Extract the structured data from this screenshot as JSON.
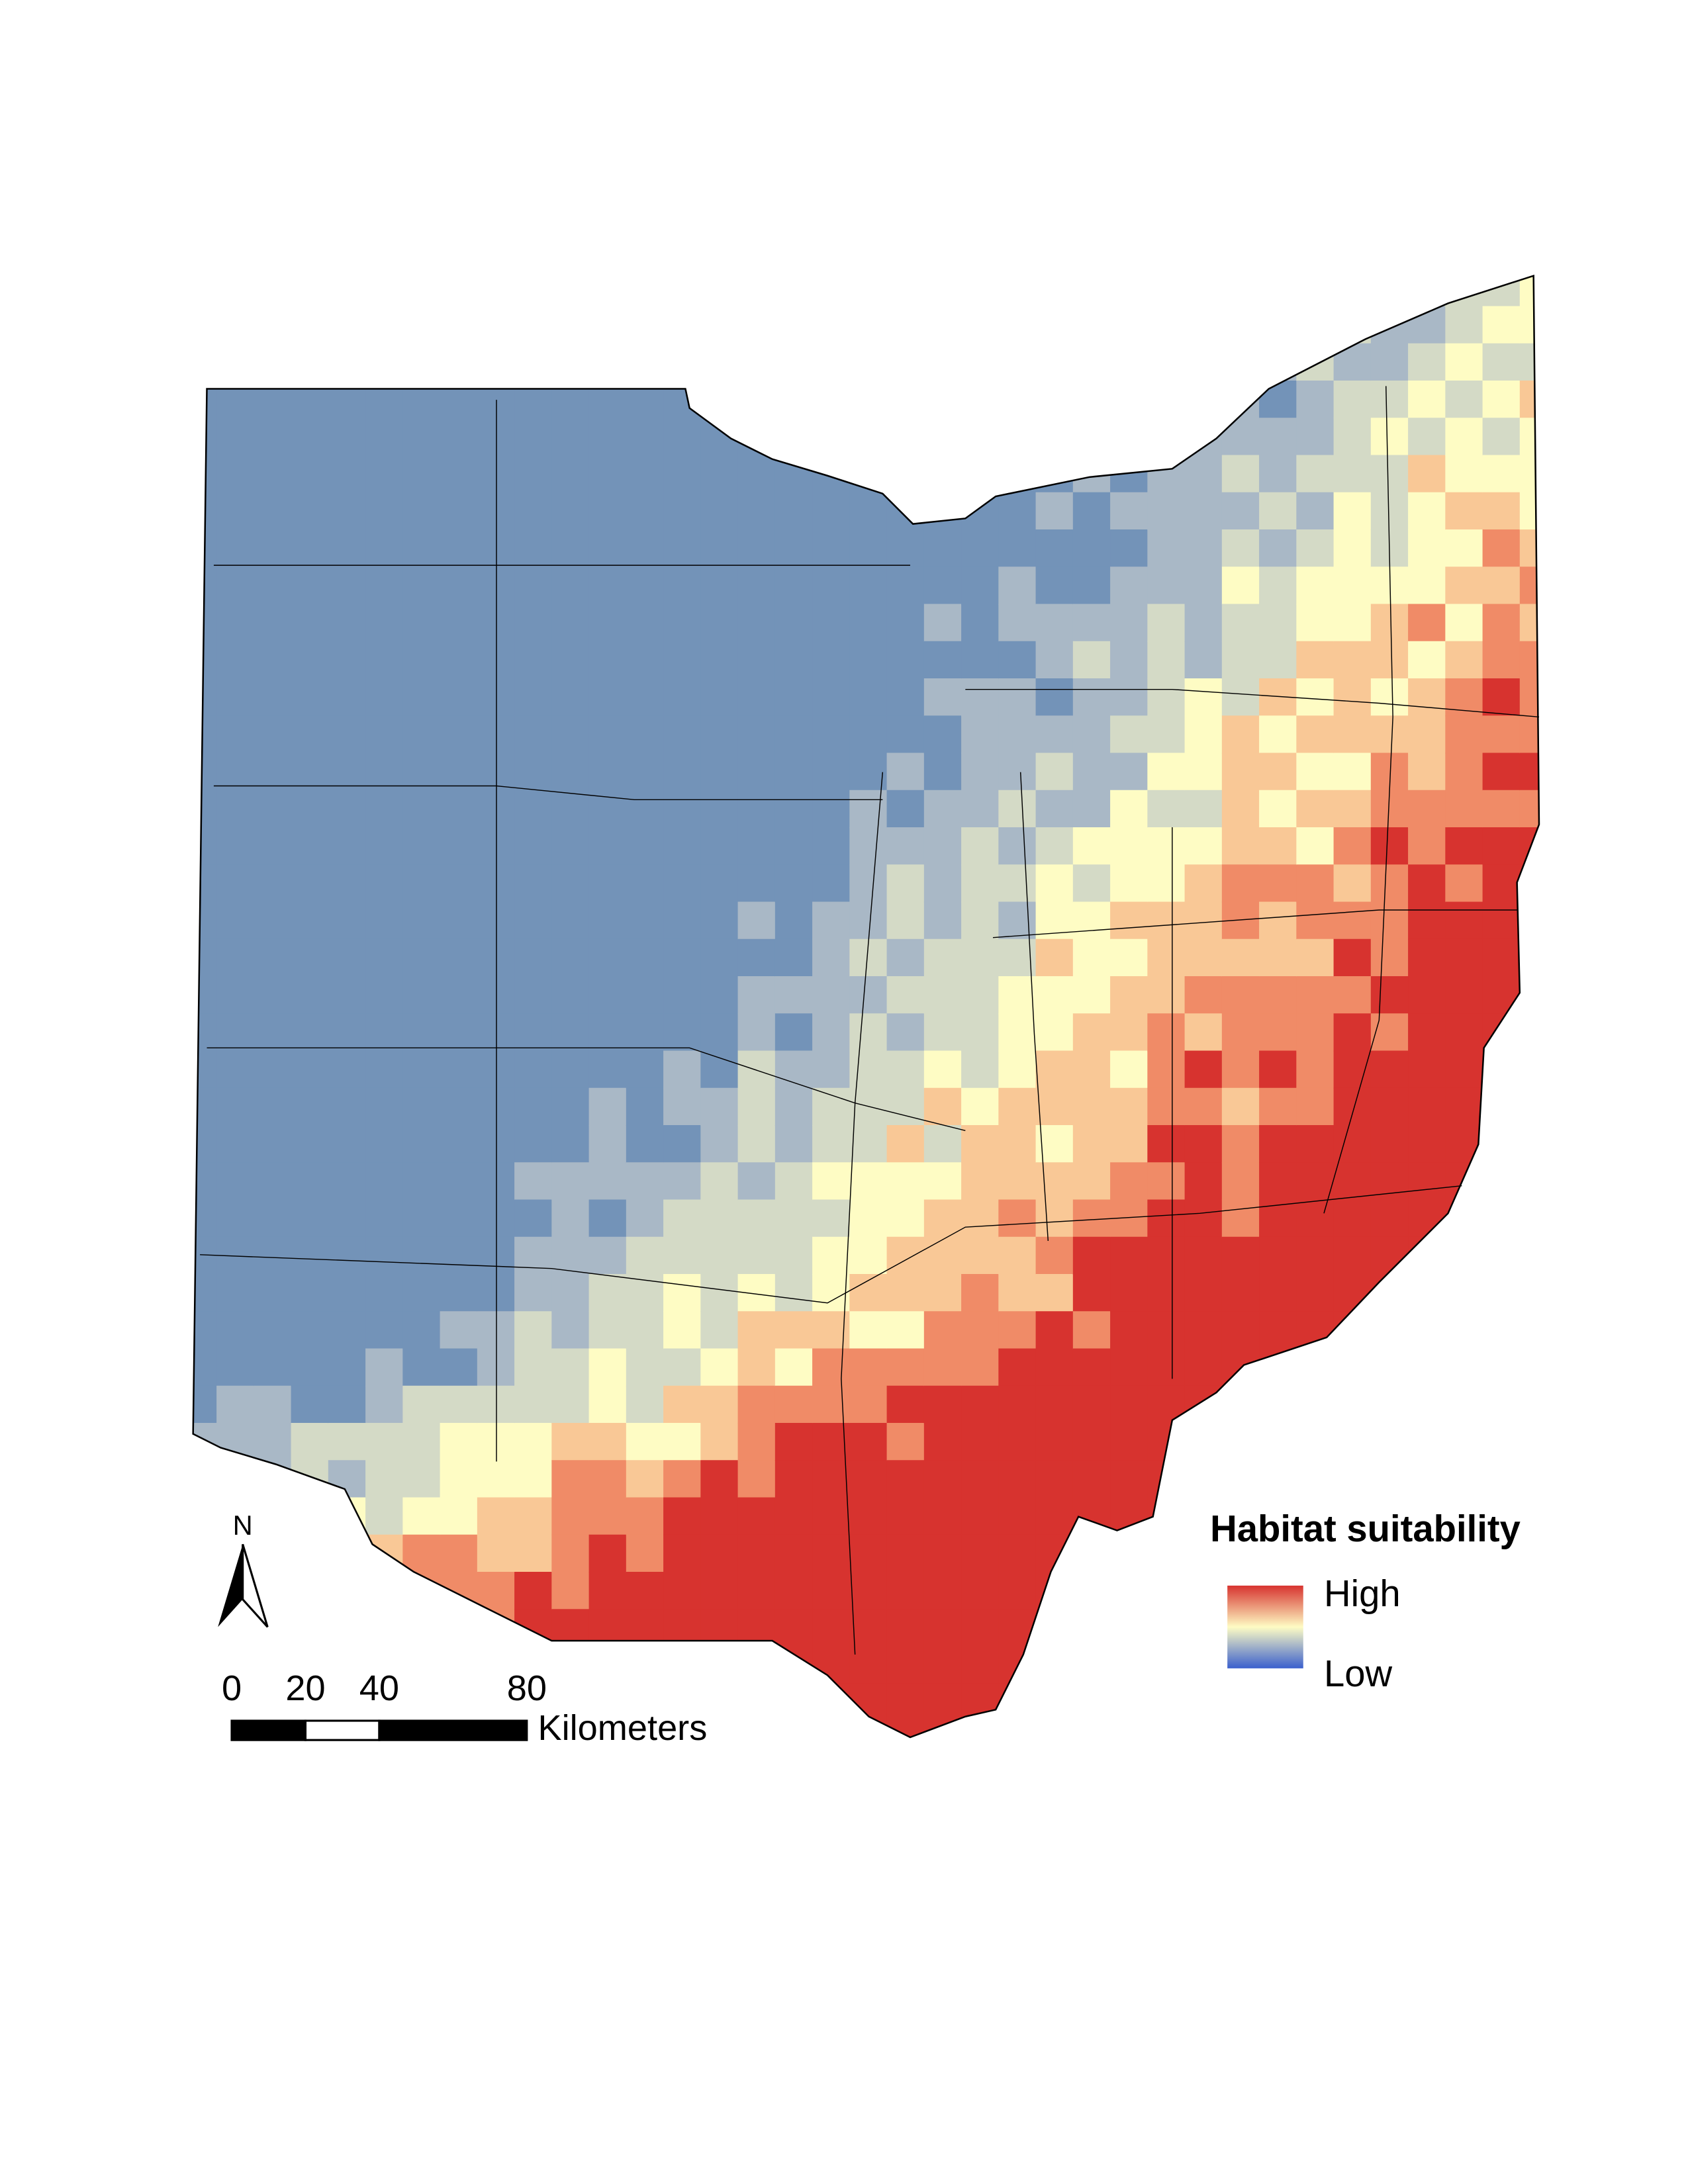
{
  "legend": {
    "title": "Habitat suitability",
    "high": "High",
    "low": "Low"
  },
  "north_arrow": {
    "label": "N"
  },
  "scale_bar": {
    "ticks": [
      0,
      20,
      40,
      80
    ],
    "unit": "Kilometers"
  }
}
